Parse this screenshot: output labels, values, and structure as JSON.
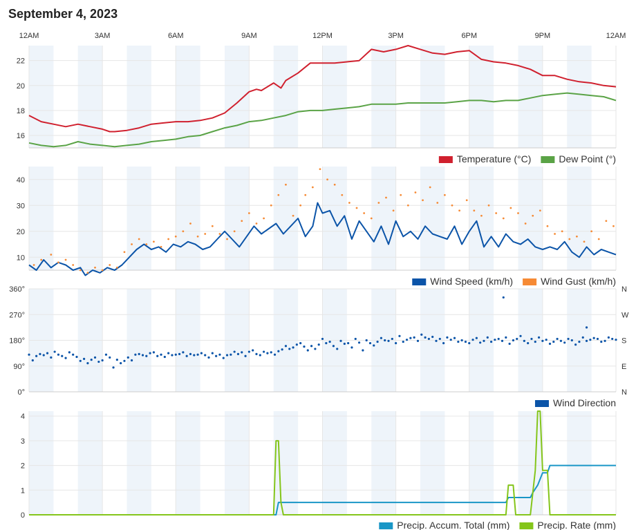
{
  "page": {
    "title": "September 4, 2023"
  },
  "colors": {
    "temperature": "#d0202e",
    "dew_point": "#5aa346",
    "wind_speed": "#0b54a8",
    "wind_gust": "#f68a34",
    "wind_direction": "#0b54a8",
    "precip_accum": "#1996c6",
    "precip_rate": "#84c51a",
    "band": "#eef4fa",
    "grid": "#e6e6e6"
  },
  "x_axis": {
    "ticks": [
      {
        "hour": 0,
        "label": "12AM"
      },
      {
        "hour": 3,
        "label": "3AM"
      },
      {
        "hour": 6,
        "label": "6AM"
      },
      {
        "hour": 9,
        "label": "9AM"
      },
      {
        "hour": 12,
        "label": "12PM"
      },
      {
        "hour": 15,
        "label": "3PM"
      },
      {
        "hour": 18,
        "label": "6PM"
      },
      {
        "hour": 21,
        "label": "9PM"
      },
      {
        "hour": 24,
        "label": "12AM"
      }
    ]
  },
  "chart_data": [
    {
      "id": "temperature",
      "type": "line",
      "ylim": [
        15,
        23.2
      ],
      "yticks": [
        16,
        18,
        20,
        22
      ],
      "legend": "bottom-right",
      "series": [
        {
          "name": "Temperature (°C)",
          "color": "#d0202e",
          "x": [
            0,
            0.5,
            1,
            1.5,
            2,
            2.5,
            3,
            3.3,
            3.5,
            4,
            4.5,
            5,
            5.5,
            6,
            6.5,
            7,
            7.5,
            8,
            8.5,
            9,
            9.3,
            9.5,
            10,
            10.3,
            10.5,
            11,
            11.5,
            12,
            12.5,
            13,
            13.5,
            14,
            14.5,
            15,
            15.5,
            16,
            16.5,
            17,
            17.5,
            18,
            18.5,
            19,
            19.5,
            20,
            20.5,
            21,
            21.5,
            22,
            22.5,
            23,
            23.5,
            24
          ],
          "y": [
            17.6,
            17.1,
            16.9,
            16.7,
            16.9,
            16.7,
            16.5,
            16.3,
            16.3,
            16.4,
            16.6,
            16.9,
            17.0,
            17.1,
            17.1,
            17.2,
            17.4,
            17.8,
            18.6,
            19.5,
            19.7,
            19.6,
            20.2,
            19.8,
            20.4,
            21.0,
            21.8,
            21.8,
            21.8,
            21.9,
            22.0,
            22.9,
            22.7,
            22.9,
            23.2,
            22.9,
            22.6,
            22.5,
            22.7,
            22.8,
            22.1,
            21.9,
            21.8,
            21.6,
            21.3,
            20.8,
            20.8,
            20.5,
            20.3,
            20.2,
            20.0,
            19.9
          ]
        },
        {
          "name": "Dew Point (°)",
          "color": "#5aa346",
          "x": [
            0,
            0.5,
            1,
            1.5,
            2,
            2.5,
            3,
            3.5,
            4,
            4.5,
            5,
            5.5,
            6,
            6.5,
            7,
            7.5,
            8,
            8.5,
            9,
            9.5,
            10,
            10.5,
            11,
            11.5,
            12,
            12.5,
            13,
            13.5,
            14,
            14.5,
            15,
            15.5,
            16,
            16.5,
            17,
            17.5,
            18,
            18.5,
            19,
            19.5,
            20,
            20.5,
            21,
            21.5,
            22,
            22.5,
            23,
            23.5,
            24
          ],
          "y": [
            15.4,
            15.2,
            15.1,
            15.2,
            15.5,
            15.3,
            15.2,
            15.1,
            15.2,
            15.3,
            15.5,
            15.6,
            15.7,
            15.9,
            16.0,
            16.3,
            16.6,
            16.8,
            17.1,
            17.2,
            17.4,
            17.6,
            17.9,
            18.0,
            18.0,
            18.1,
            18.2,
            18.3,
            18.5,
            18.5,
            18.5,
            18.6,
            18.6,
            18.6,
            18.6,
            18.7,
            18.8,
            18.8,
            18.7,
            18.8,
            18.8,
            19.0,
            19.2,
            19.3,
            19.4,
            19.3,
            19.2,
            19.1,
            18.8
          ]
        }
      ]
    },
    {
      "id": "wind",
      "type": "line",
      "ylim": [
        5,
        45
      ],
      "yticks": [
        10,
        20,
        30,
        40
      ],
      "legend": "bottom-right",
      "series": [
        {
          "name": "Wind Speed (km/h)",
          "color": "#0b54a8",
          "style": "line",
          "x": [
            0,
            0.3,
            0.6,
            0.9,
            1.2,
            1.5,
            1.8,
            2.1,
            2.3,
            2.6,
            2.9,
            3.2,
            3.5,
            3.8,
            4.1,
            4.4,
            4.7,
            5,
            5.3,
            5.6,
            5.9,
            6.2,
            6.5,
            6.8,
            7.1,
            7.4,
            7.7,
            8,
            8.3,
            8.6,
            8.9,
            9.2,
            9.5,
            9.8,
            10.1,
            10.4,
            10.7,
            11,
            11.3,
            11.6,
            11.8,
            12,
            12.3,
            12.6,
            12.9,
            13.2,
            13.5,
            13.8,
            14.1,
            14.4,
            14.7,
            15,
            15.3,
            15.6,
            15.9,
            16.2,
            16.5,
            16.8,
            17.1,
            17.4,
            17.7,
            18,
            18.3,
            18.6,
            18.9,
            19.2,
            19.5,
            19.8,
            20.1,
            20.4,
            20.7,
            21,
            21.3,
            21.6,
            21.9,
            22.2,
            22.5,
            22.8,
            23.1,
            23.4,
            23.7,
            24
          ],
          "y": [
            7,
            5,
            9,
            6,
            8,
            7,
            5,
            6,
            3,
            5,
            4,
            6,
            5,
            7,
            10,
            13,
            15,
            13,
            14,
            12,
            15,
            14,
            16,
            15,
            13,
            14,
            17,
            20,
            17,
            14,
            18,
            22,
            19,
            21,
            23,
            19,
            22,
            25,
            18,
            22,
            31,
            27,
            28,
            22,
            26,
            17,
            24,
            20,
            16,
            22,
            15,
            24,
            18,
            20,
            17,
            22,
            19,
            18,
            17,
            22,
            15,
            20,
            24,
            14,
            18,
            14,
            19,
            16,
            15,
            17,
            14,
            13,
            14,
            13,
            16,
            12,
            10,
            14,
            11,
            13,
            12,
            11
          ]
        },
        {
          "name": "Wind Gust (km/h)",
          "color": "#f68a34",
          "style": "dots",
          "x": [
            0.2,
            0.5,
            0.9,
            1.2,
            1.5,
            1.8,
            2.1,
            2.4,
            2.7,
            3,
            3.3,
            3.6,
            3.9,
            4.2,
            4.5,
            4.8,
            5.1,
            5.4,
            5.7,
            6,
            6.3,
            6.6,
            6.9,
            7.2,
            7.5,
            7.8,
            8.1,
            8.4,
            8.7,
            9,
            9.3,
            9.6,
            9.9,
            10.2,
            10.5,
            10.8,
            11.1,
            11.3,
            11.6,
            11.9,
            12.2,
            12.5,
            12.8,
            13.1,
            13.4,
            13.7,
            14,
            14.3,
            14.6,
            14.9,
            15.2,
            15.5,
            15.8,
            16.1,
            16.4,
            16.7,
            17,
            17.3,
            17.6,
            17.9,
            18.2,
            18.5,
            18.8,
            19.1,
            19.4,
            19.7,
            20,
            20.3,
            20.6,
            20.9,
            21.2,
            21.5,
            21.8,
            22.1,
            22.4,
            22.7,
            23,
            23.3,
            23.6,
            23.9
          ],
          "y": [
            7,
            9,
            11,
            8,
            9,
            7,
            5,
            4,
            6,
            5,
            7,
            6,
            12,
            15,
            17,
            15,
            16,
            14,
            17,
            18,
            20,
            23,
            18,
            19,
            22,
            19,
            17,
            20,
            24,
            27,
            23,
            25,
            30,
            34,
            38,
            26,
            30,
            34,
            37,
            44,
            40,
            38,
            34,
            31,
            29,
            27,
            25,
            31,
            33,
            28,
            34,
            30,
            35,
            32,
            37,
            31,
            34,
            30,
            28,
            32,
            28,
            26,
            30,
            27,
            25,
            29,
            27,
            23,
            26,
            28,
            22,
            19,
            20,
            17,
            18,
            16,
            20,
            17,
            24,
            22
          ]
        }
      ]
    },
    {
      "id": "wind_direction",
      "type": "scatter",
      "ylim": [
        0,
        360
      ],
      "yticks": [
        0,
        90,
        180,
        270,
        360
      ],
      "ytick_labels": [
        "0°",
        "90°",
        "180°",
        "270°",
        "360°"
      ],
      "right_labels": [
        "N",
        "E",
        "S",
        "W",
        "N"
      ],
      "legend": "bottom-right",
      "series": [
        {
          "name": "Wind Direction",
          "color": "#0b54a8",
          "x": [
            0,
            0.15,
            0.3,
            0.45,
            0.6,
            0.75,
            0.9,
            1.05,
            1.2,
            1.35,
            1.5,
            1.65,
            1.8,
            1.95,
            2.1,
            2.25,
            2.4,
            2.55,
            2.7,
            2.85,
            3,
            3.15,
            3.3,
            3.45,
            3.6,
            3.75,
            3.9,
            4.05,
            4.2,
            4.35,
            4.5,
            4.65,
            4.8,
            4.95,
            5.1,
            5.25,
            5.4,
            5.55,
            5.7,
            5.85,
            6,
            6.15,
            6.3,
            6.45,
            6.6,
            6.75,
            6.9,
            7.05,
            7.2,
            7.35,
            7.5,
            7.65,
            7.8,
            7.95,
            8.1,
            8.25,
            8.4,
            8.55,
            8.7,
            8.85,
            9,
            9.15,
            9.3,
            9.45,
            9.6,
            9.75,
            9.9,
            10.05,
            10.2,
            10.35,
            10.5,
            10.65,
            10.8,
            10.95,
            11.1,
            11.25,
            11.4,
            11.55,
            11.7,
            11.85,
            12,
            12.15,
            12.3,
            12.45,
            12.6,
            12.75,
            12.9,
            13.05,
            13.2,
            13.35,
            13.5,
            13.65,
            13.8,
            13.95,
            14.1,
            14.25,
            14.4,
            14.55,
            14.7,
            14.85,
            15,
            15.15,
            15.3,
            15.45,
            15.6,
            15.75,
            15.9,
            16.05,
            16.2,
            16.35,
            16.5,
            16.65,
            16.8,
            16.95,
            17.1,
            17.25,
            17.4,
            17.55,
            17.7,
            17.85,
            18,
            18.15,
            18.3,
            18.45,
            18.6,
            18.75,
            18.9,
            19.05,
            19.2,
            19.35,
            19.5,
            19.65,
            19.8,
            19.95,
            20.1,
            20.25,
            20.4,
            20.55,
            20.7,
            20.85,
            21,
            21.15,
            21.3,
            21.45,
            21.6,
            21.75,
            21.9,
            22.05,
            22.2,
            22.35,
            22.5,
            22.65,
            22.8,
            22.95,
            23.1,
            23.25,
            23.4,
            23.55,
            23.7,
            23.85,
            24,
            19.4,
            22.8
          ],
          "y": [
            130,
            110,
            125,
            132,
            128,
            135,
            120,
            140,
            130,
            125,
            118,
            138,
            130,
            122,
            108,
            115,
            100,
            112,
            120,
            105,
            110,
            130,
            120,
            85,
            112,
            100,
            108,
            120,
            110,
            130,
            132,
            128,
            125,
            135,
            138,
            125,
            130,
            122,
            135,
            128,
            130,
            132,
            138,
            125,
            132,
            128,
            130,
            135,
            128,
            120,
            135,
            125,
            130,
            118,
            128,
            130,
            140,
            132,
            138,
            125,
            140,
            145,
            132,
            128,
            140,
            135,
            138,
            130,
            142,
            148,
            160,
            150,
            155,
            165,
            170,
            158,
            145,
            160,
            150,
            165,
            185,
            170,
            175,
            160,
            150,
            178,
            168,
            170,
            155,
            185,
            172,
            145,
            180,
            170,
            162,
            175,
            188,
            180,
            178,
            185,
            170,
            195,
            175,
            182,
            188,
            190,
            178,
            200,
            190,
            185,
            192,
            178,
            185,
            170,
            190,
            182,
            188,
            175,
            180,
            175,
            170,
            182,
            188,
            172,
            178,
            190,
            175,
            182,
            185,
            178,
            190,
            168,
            180,
            185,
            195,
            178,
            170,
            185,
            175,
            190,
            178,
            182,
            168,
            175,
            185,
            178,
            172,
            185,
            180,
            165,
            175,
            190,
            178,
            182,
            188,
            185,
            175,
            178,
            190,
            185,
            182,
            330,
            225
          ]
        }
      ]
    },
    {
      "id": "precip",
      "type": "line",
      "ylim": [
        0,
        4.2
      ],
      "yticks": [
        0,
        1,
        2,
        3,
        4
      ],
      "legend": "bottom-right",
      "series": [
        {
          "name": "Precip. Accum. Total (mm)",
          "color": "#1996c6",
          "x": [
            0,
            10.1,
            10.2,
            10.3,
            19.5,
            19.6,
            19.7,
            20.5,
            20.6,
            20.8,
            21.0,
            21.2,
            21.3,
            21.4,
            24
          ],
          "y": [
            0,
            0,
            0.5,
            0.5,
            0.5,
            0.7,
            0.7,
            0.7,
            0.9,
            1.2,
            1.7,
            1.7,
            2.0,
            2.0,
            2.0
          ]
        },
        {
          "name": "Precip. Rate (mm)",
          "color": "#84c51a",
          "x": [
            0,
            10,
            10.1,
            10.2,
            10.3,
            10.4,
            19.5,
            19.6,
            19.8,
            19.9,
            20.5,
            20.7,
            20.8,
            20.9,
            21.0,
            21.2,
            21.3,
            21.4,
            21.5,
            24
          ],
          "y": [
            0,
            0,
            3.0,
            3.0,
            0.5,
            0,
            0,
            1.2,
            1.2,
            0,
            0,
            1.8,
            4.2,
            4.2,
            1.8,
            1.8,
            0,
            0,
            0,
            0
          ]
        }
      ]
    }
  ]
}
